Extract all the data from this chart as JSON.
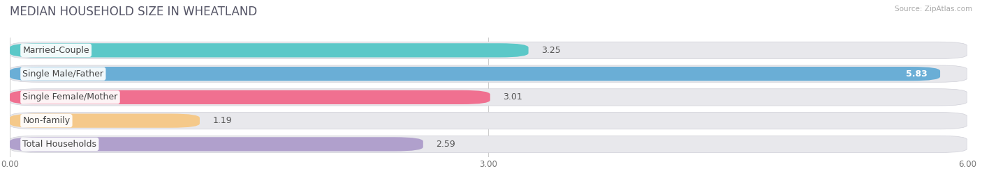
{
  "title": "MEDIAN HOUSEHOLD SIZE IN WHEATLAND",
  "source": "Source: ZipAtlas.com",
  "categories": [
    "Married-Couple",
    "Single Male/Father",
    "Single Female/Mother",
    "Non-family",
    "Total Households"
  ],
  "values": [
    3.25,
    5.83,
    3.01,
    1.19,
    2.59
  ],
  "bar_colors": [
    "#5cc8c8",
    "#6aaed6",
    "#f07090",
    "#f5c98a",
    "#b0a0cc"
  ],
  "xlim": [
    0,
    6.0
  ],
  "xticks": [
    0.0,
    3.0,
    6.0
  ],
  "xtick_labels": [
    "0.00",
    "3.00",
    "6.00"
  ],
  "background_color": "#ffffff",
  "bg_bar_color": "#e8e8ec",
  "title_fontsize": 12,
  "label_fontsize": 9,
  "value_fontsize": 9
}
